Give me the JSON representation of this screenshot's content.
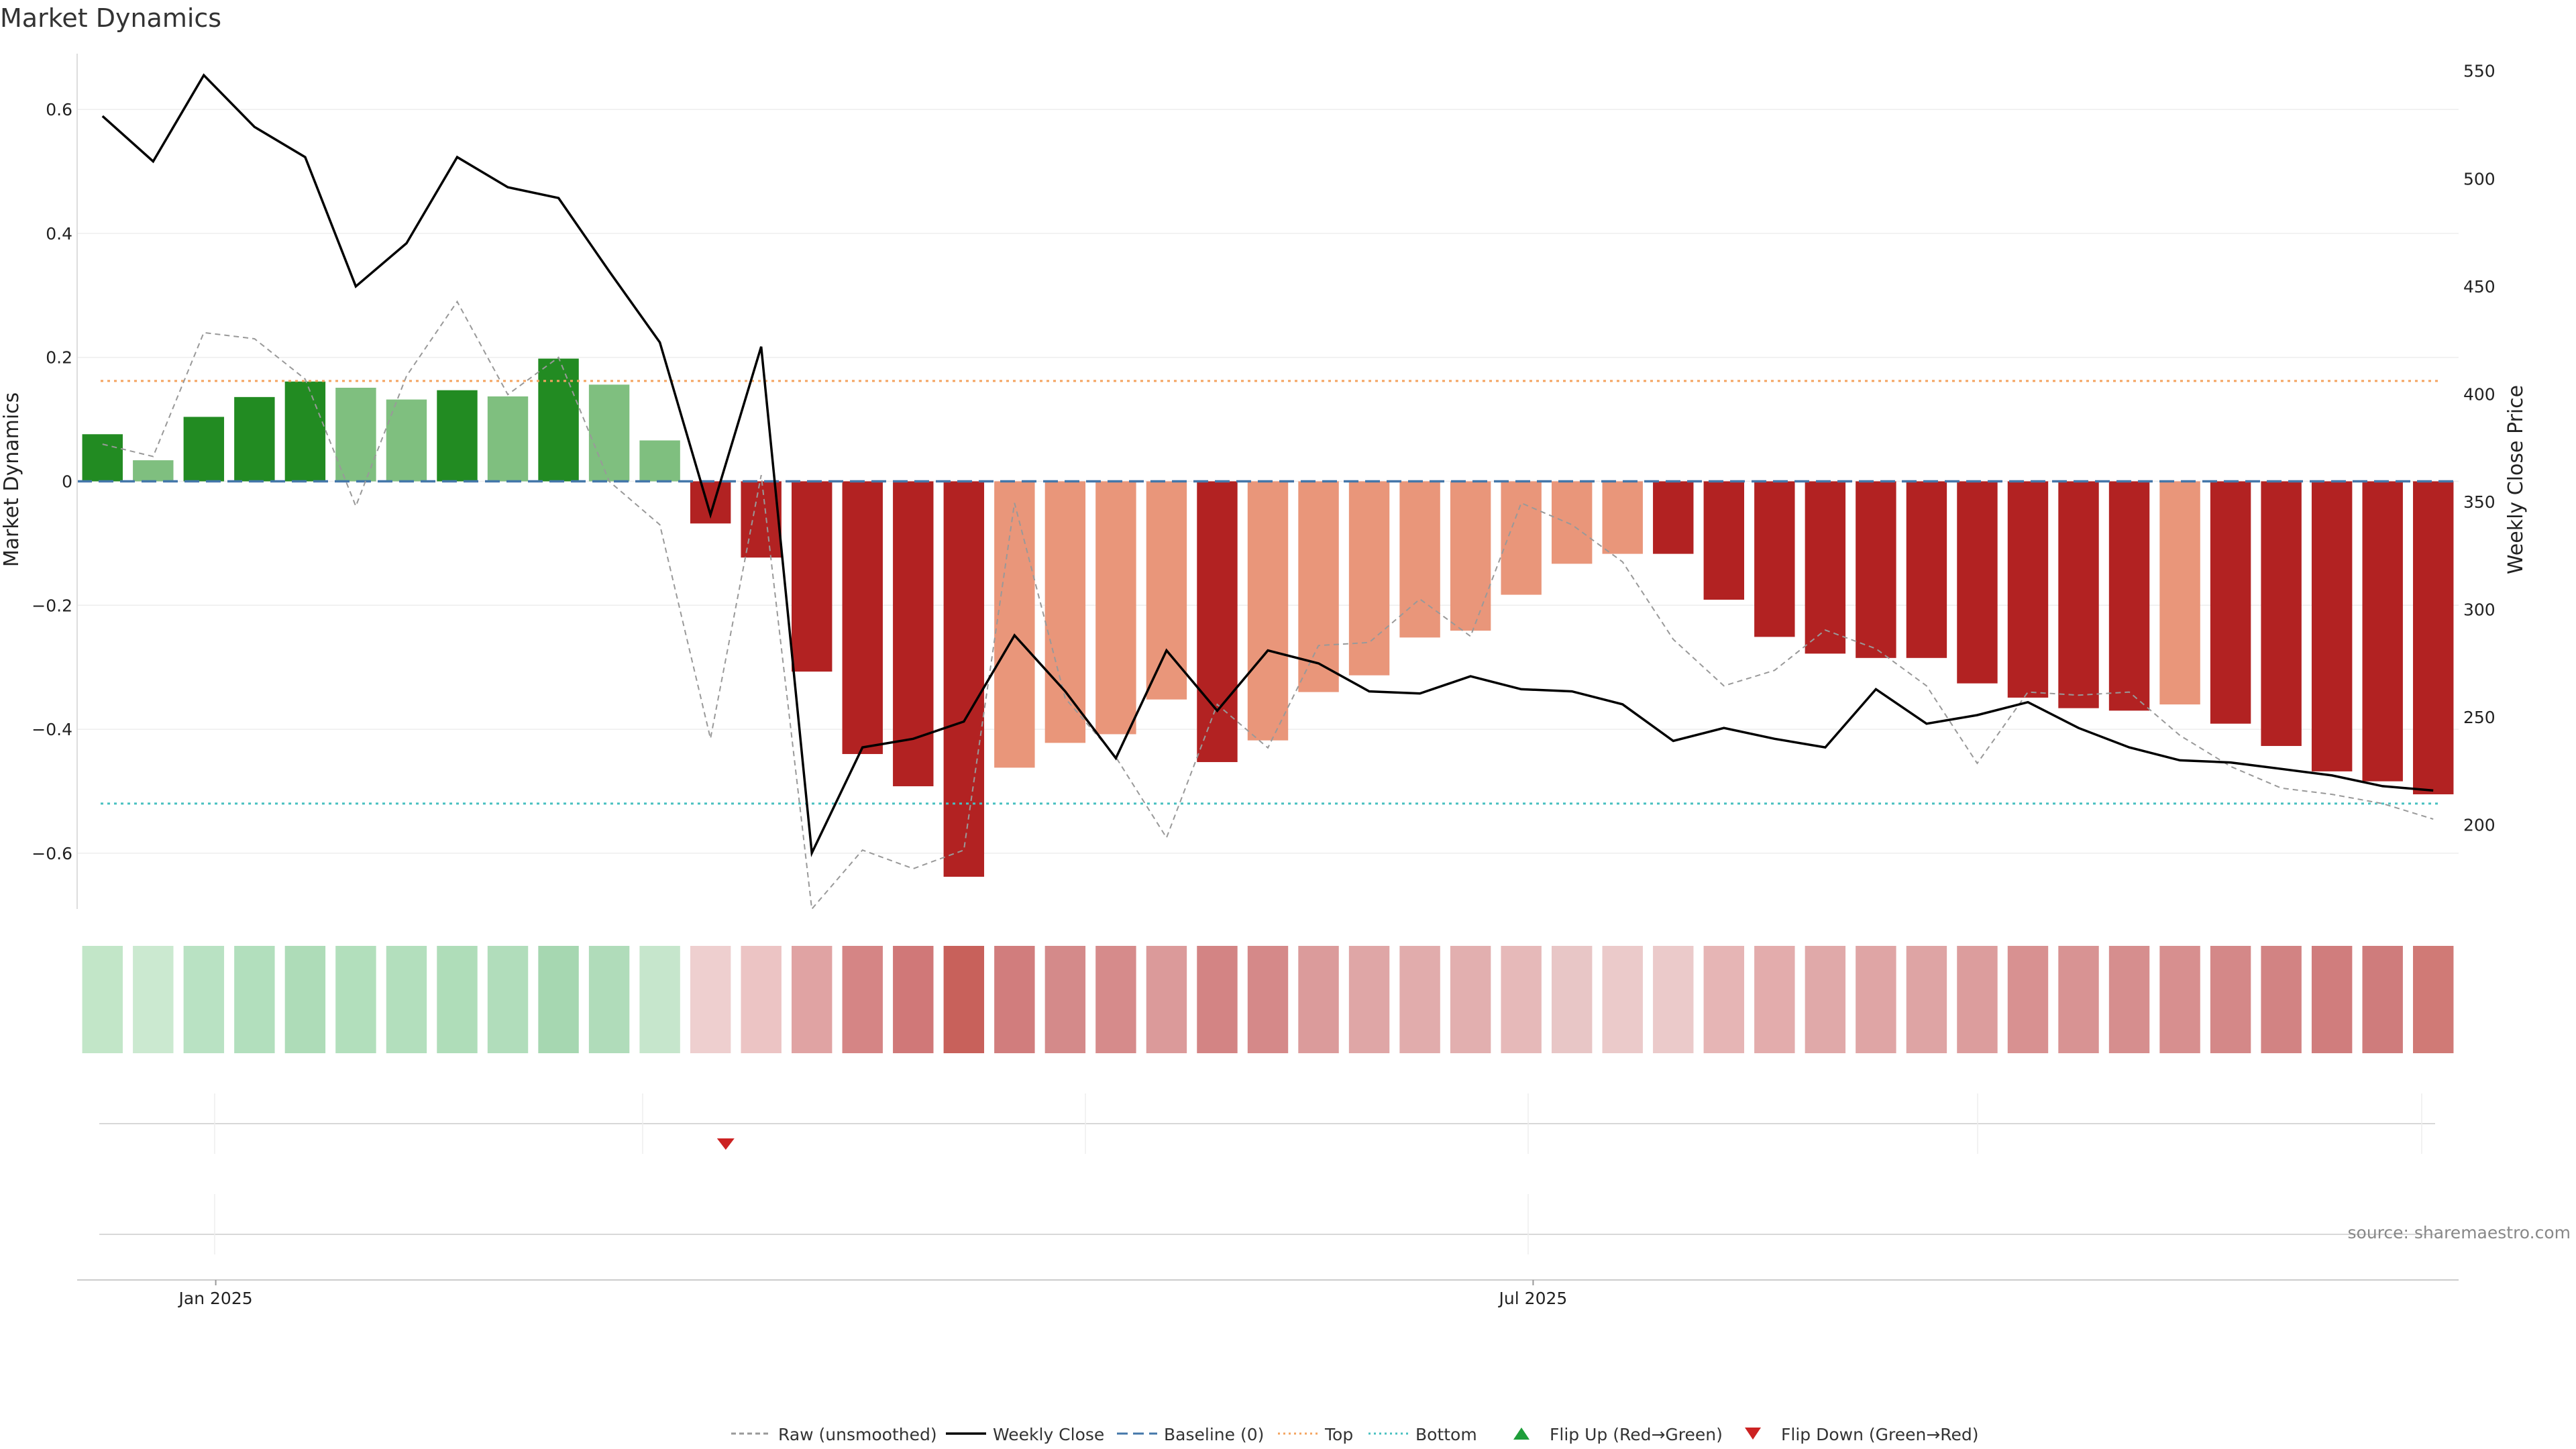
{
  "chart_data": {
    "type": "bar",
    "title": "Market Dynamics",
    "ylabel": "Market Dynamics",
    "y2label": "Weekly Close Price",
    "ylim": [
      -0.69,
      0.69
    ],
    "y2lim": [
      161,
      558
    ],
    "yticks": [
      0.6,
      0.4,
      0.2,
      0,
      -0.2,
      -0.4,
      -0.6
    ],
    "ytick_labels": [
      "0.6",
      "0.4",
      "0.2",
      "0",
      "−0.2",
      "−0.4",
      "−0.6"
    ],
    "y2ticks": [
      550,
      500,
      450,
      400,
      350,
      300,
      250,
      200
    ],
    "y2tick_labels": [
      "550",
      "500",
      "450",
      "400",
      "350",
      "300",
      "250",
      "200"
    ],
    "xticks": [
      {
        "index": 2.5,
        "label": "Jan 2025"
      },
      {
        "index": 28.5,
        "label": "Jul 2025"
      }
    ],
    "grid": true,
    "legend_position": "bottom-center",
    "source_text": "source: sharemaestro.com",
    "colors": {
      "strong_up": "#228B22",
      "weak_up": "#7FBF7F",
      "strong_down": "#B22222",
      "weak_down": "#E9967A",
      "raw": "#999999",
      "close": "#000000",
      "baseline": "#4477AA",
      "top": "#F4A460",
      "bottom": "#48C0C0",
      "flip_up": "#1E9E3A",
      "flip_down": "#CC2222"
    },
    "thresholds": {
      "baseline": 0,
      "top": 0.162,
      "bottom": -0.52
    },
    "bars": [
      {
        "v": 0.076,
        "c": "strong_up"
      },
      {
        "v": 0.034,
        "c": "weak_up"
      },
      {
        "v": 0.104,
        "c": "strong_up"
      },
      {
        "v": 0.136,
        "c": "strong_up"
      },
      {
        "v": 0.161,
        "c": "strong_up"
      },
      {
        "v": 0.151,
        "c": "weak_up"
      },
      {
        "v": 0.132,
        "c": "weak_up"
      },
      {
        "v": 0.147,
        "c": "strong_up"
      },
      {
        "v": 0.137,
        "c": "weak_up"
      },
      {
        "v": 0.198,
        "c": "strong_up"
      },
      {
        "v": 0.156,
        "c": "weak_up"
      },
      {
        "v": 0.066,
        "c": "weak_up"
      },
      {
        "v": -0.068,
        "c": "strong_down"
      },
      {
        "v": -0.123,
        "c": "strong_down"
      },
      {
        "v": -0.307,
        "c": "strong_down"
      },
      {
        "v": -0.44,
        "c": "strong_down"
      },
      {
        "v": -0.492,
        "c": "strong_down"
      },
      {
        "v": -0.638,
        "c": "strong_down"
      },
      {
        "v": -0.462,
        "c": "weak_down"
      },
      {
        "v": -0.422,
        "c": "weak_down"
      },
      {
        "v": -0.408,
        "c": "weak_down"
      },
      {
        "v": -0.352,
        "c": "weak_down"
      },
      {
        "v": -0.453,
        "c": "strong_down"
      },
      {
        "v": -0.418,
        "c": "weak_down"
      },
      {
        "v": -0.34,
        "c": "weak_down"
      },
      {
        "v": -0.313,
        "c": "weak_down"
      },
      {
        "v": -0.252,
        "c": "weak_down"
      },
      {
        "v": -0.241,
        "c": "weak_down"
      },
      {
        "v": -0.183,
        "c": "weak_down"
      },
      {
        "v": -0.133,
        "c": "weak_down"
      },
      {
        "v": -0.117,
        "c": "weak_down"
      },
      {
        "v": -0.117,
        "c": "strong_down"
      },
      {
        "v": -0.191,
        "c": "strong_down"
      },
      {
        "v": -0.251,
        "c": "strong_down"
      },
      {
        "v": -0.278,
        "c": "strong_down"
      },
      {
        "v": -0.285,
        "c": "strong_down"
      },
      {
        "v": -0.285,
        "c": "strong_down"
      },
      {
        "v": -0.326,
        "c": "strong_down"
      },
      {
        "v": -0.349,
        "c": "strong_down"
      },
      {
        "v": -0.366,
        "c": "strong_down"
      },
      {
        "v": -0.37,
        "c": "strong_down"
      },
      {
        "v": -0.36,
        "c": "weak_down"
      },
      {
        "v": -0.391,
        "c": "strong_down"
      },
      {
        "v": -0.427,
        "c": "strong_down"
      },
      {
        "v": -0.468,
        "c": "strong_down"
      },
      {
        "v": -0.484,
        "c": "strong_down"
      },
      {
        "v": -0.505,
        "c": "strong_down"
      }
    ],
    "raw": [
      0.06,
      0.04,
      0.24,
      0.23,
      0.165,
      -0.04,
      0.17,
      0.29,
      0.14,
      0.2,
      0.0,
      -0.07,
      -0.415,
      0.01,
      -0.69,
      -0.595,
      -0.625,
      -0.595,
      -0.035,
      -0.35,
      -0.445,
      -0.575,
      -0.36,
      -0.43,
      -0.265,
      -0.26,
      -0.19,
      -0.25,
      -0.035,
      -0.07,
      -0.13,
      -0.255,
      -0.33,
      -0.305,
      -0.24,
      -0.27,
      -0.33,
      -0.455,
      -0.34,
      -0.345,
      -0.34,
      -0.41,
      -0.46,
      -0.495,
      -0.505,
      -0.52,
      -0.545
    ],
    "close": [
      529,
      508,
      548,
      524,
      510,
      450,
      470,
      510,
      496,
      491,
      457,
      424,
      344,
      422,
      187,
      236,
      240,
      248,
      288,
      262,
      231,
      281,
      253,
      281,
      275,
      262,
      261,
      269,
      263,
      262,
      256,
      239,
      245,
      240,
      236,
      263,
      247,
      251,
      257,
      245,
      236,
      230,
      229,
      226,
      223,
      218,
      216
    ],
    "heat_strip": [
      "#c2e6c8",
      "#cbe9d0",
      "#b9e2c3",
      "#b2dfbd",
      "#aedcb8",
      "#b2dfbc",
      "#b3dfbd",
      "#afddb9",
      "#b1ddbb",
      "#a6d7b1",
      "#b0dcba",
      "#c6e6cc",
      "#eecfcf",
      "#ecc4c4",
      "#e0a3a3",
      "#d58585",
      "#d07878",
      "#c8615b",
      "#d17d7d",
      "#d48a8a",
      "#d68b8b",
      "#db9a9a",
      "#d38484",
      "#d58989",
      "#db9b9b",
      "#dfa6a6",
      "#e1acac",
      "#e2afaf",
      "#e6b9b9",
      "#e8c6c6",
      "#ebcaca",
      "#ebcaca",
      "#e6b5b5",
      "#e3acac",
      "#e0a9a9",
      "#dfa5a5",
      "#dea4a4",
      "#dc9d9d",
      "#d89191",
      "#d89393",
      "#d68e8e",
      "#d78f8f",
      "#d48888",
      "#d28383",
      "#d07d7d",
      "#cf7c7c",
      "#d07a76"
    ],
    "flip_down_index": 12.3,
    "legend": [
      {
        "kind": "dashed",
        "color": "raw",
        "label": "Raw (unsmoothed)"
      },
      {
        "kind": "solid",
        "color": "close",
        "label": "Weekly Close"
      },
      {
        "kind": "longdash",
        "color": "baseline",
        "label": "Baseline (0)"
      },
      {
        "kind": "dotted",
        "color": "top",
        "label": "Top"
      },
      {
        "kind": "dotted",
        "color": "bottom",
        "label": "Bottom"
      },
      {
        "kind": "tri-up",
        "color": "flip_up",
        "label": "Flip Up (Red→Green)"
      },
      {
        "kind": "tri-down",
        "color": "flip_down",
        "label": "Flip Down (Green→Red)"
      }
    ]
  }
}
